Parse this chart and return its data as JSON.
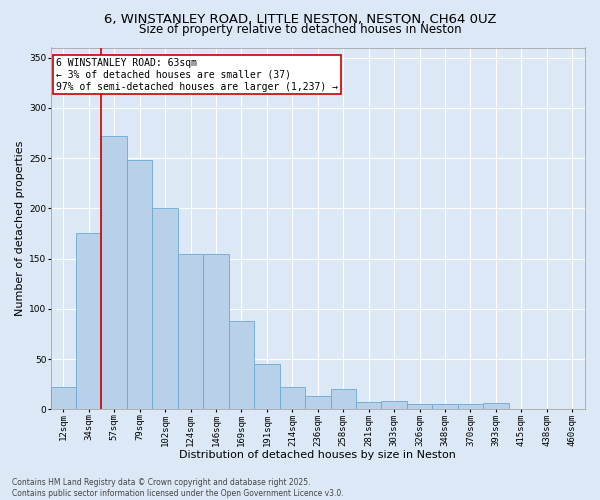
{
  "title_line1": "6, WINSTANLEY ROAD, LITTLE NESTON, NESTON, CH64 0UZ",
  "title_line2": "Size of property relative to detached houses in Neston",
  "xlabel": "Distribution of detached houses by size in Neston",
  "ylabel": "Number of detached properties",
  "categories": [
    "12sqm",
    "34sqm",
    "57sqm",
    "79sqm",
    "102sqm",
    "124sqm",
    "146sqm",
    "169sqm",
    "191sqm",
    "214sqm",
    "236sqm",
    "258sqm",
    "281sqm",
    "303sqm",
    "326sqm",
    "348sqm",
    "370sqm",
    "393sqm",
    "415sqm",
    "438sqm",
    "460sqm"
  ],
  "values": [
    22,
    175,
    272,
    248,
    200,
    155,
    155,
    88,
    45,
    22,
    13,
    20,
    7,
    8,
    5,
    5,
    5,
    6,
    0,
    0,
    0
  ],
  "bar_color": "#b8d0e8",
  "bar_edge_color": "#6aaad4",
  "background_color": "#dce8f5",
  "grid_color": "#ffffff",
  "annotation_box_text": "6 WINSTANLEY ROAD: 63sqm\n← 3% of detached houses are smaller (37)\n97% of semi-detached houses are larger (1,237) →",
  "annotation_box_color": "#ffffff",
  "annotation_box_edge_color": "#cc0000",
  "vline_color": "#cc0000",
  "vline_x": 2.5,
  "ylim": [
    0,
    360
  ],
  "yticks": [
    0,
    50,
    100,
    150,
    200,
    250,
    300,
    350
  ],
  "footnote": "Contains HM Land Registry data © Crown copyright and database right 2025.\nContains public sector information licensed under the Open Government Licence v3.0.",
  "title_fontsize": 9.5,
  "subtitle_fontsize": 8.5,
  "label_fontsize": 8,
  "tick_fontsize": 6.5,
  "annotation_fontsize": 7,
  "footnote_fontsize": 5.5
}
